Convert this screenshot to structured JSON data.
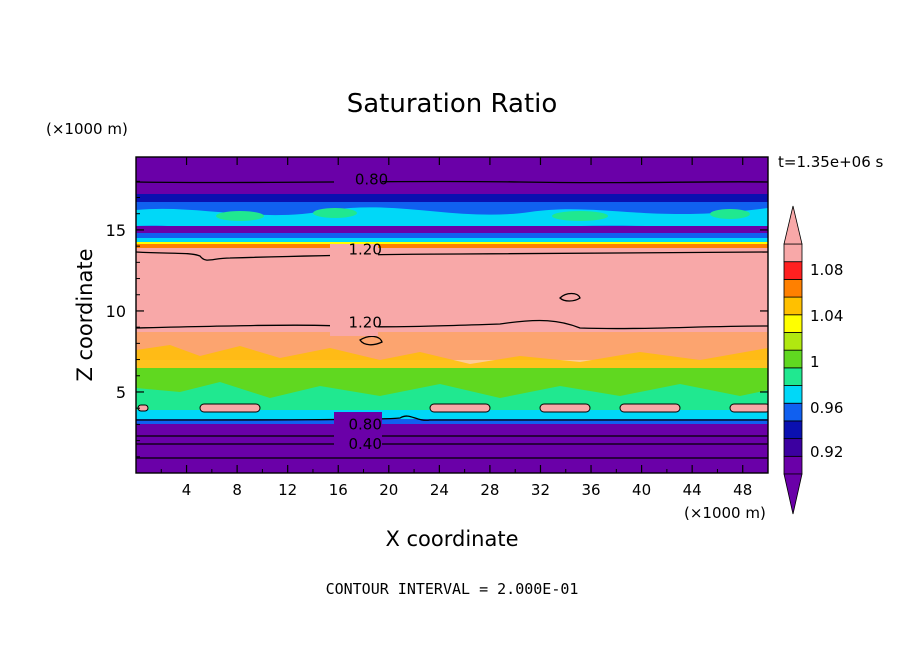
{
  "chart_data": {
    "type": "heatmap",
    "title": "Saturation Ratio",
    "xlabel": "X coordinate",
    "ylabel": "Z coordinate",
    "x_unit": "(×1000 m)",
    "y_unit": "(×1000 m)",
    "time_label": "t=1.35e+06 s",
    "footer": "CONTOUR INTERVAL = 2.000E-01",
    "xlim": [
      0,
      50
    ],
    "ylim": [
      0,
      19.5
    ],
    "x_ticks": [
      "4",
      "8",
      "12",
      "16",
      "20",
      "24",
      "28",
      "32",
      "36",
      "40",
      "44",
      "48"
    ],
    "y_ticks": [
      "5",
      "10",
      "15"
    ],
    "colorbar": {
      "labels": [
        "1.08",
        "1.04",
        "1",
        "0.96",
        "0.92"
      ],
      "colors": [
        "#6a00a8",
        "#3c00a0",
        "#0a10b0",
        "#1060f0",
        "#00d8f8",
        "#20e890",
        "#60d820",
        "#b0e810",
        "#ffff00",
        "#ffc000",
        "#ff8000",
        "#ff2020",
        "#f8a8a8"
      ]
    },
    "contour_labels": [
      {
        "text": "0.80",
        "x": 18.0,
        "z": 18.1
      },
      {
        "text": "1.20",
        "x": 17.5,
        "z": 13.8
      },
      {
        "text": "1.20",
        "x": 17.5,
        "z": 9.3
      },
      {
        "text": "0.80",
        "x": 17.5,
        "z": 3.0
      },
      {
        "text": "0.40",
        "x": 17.5,
        "z": 1.8
      }
    ]
  }
}
